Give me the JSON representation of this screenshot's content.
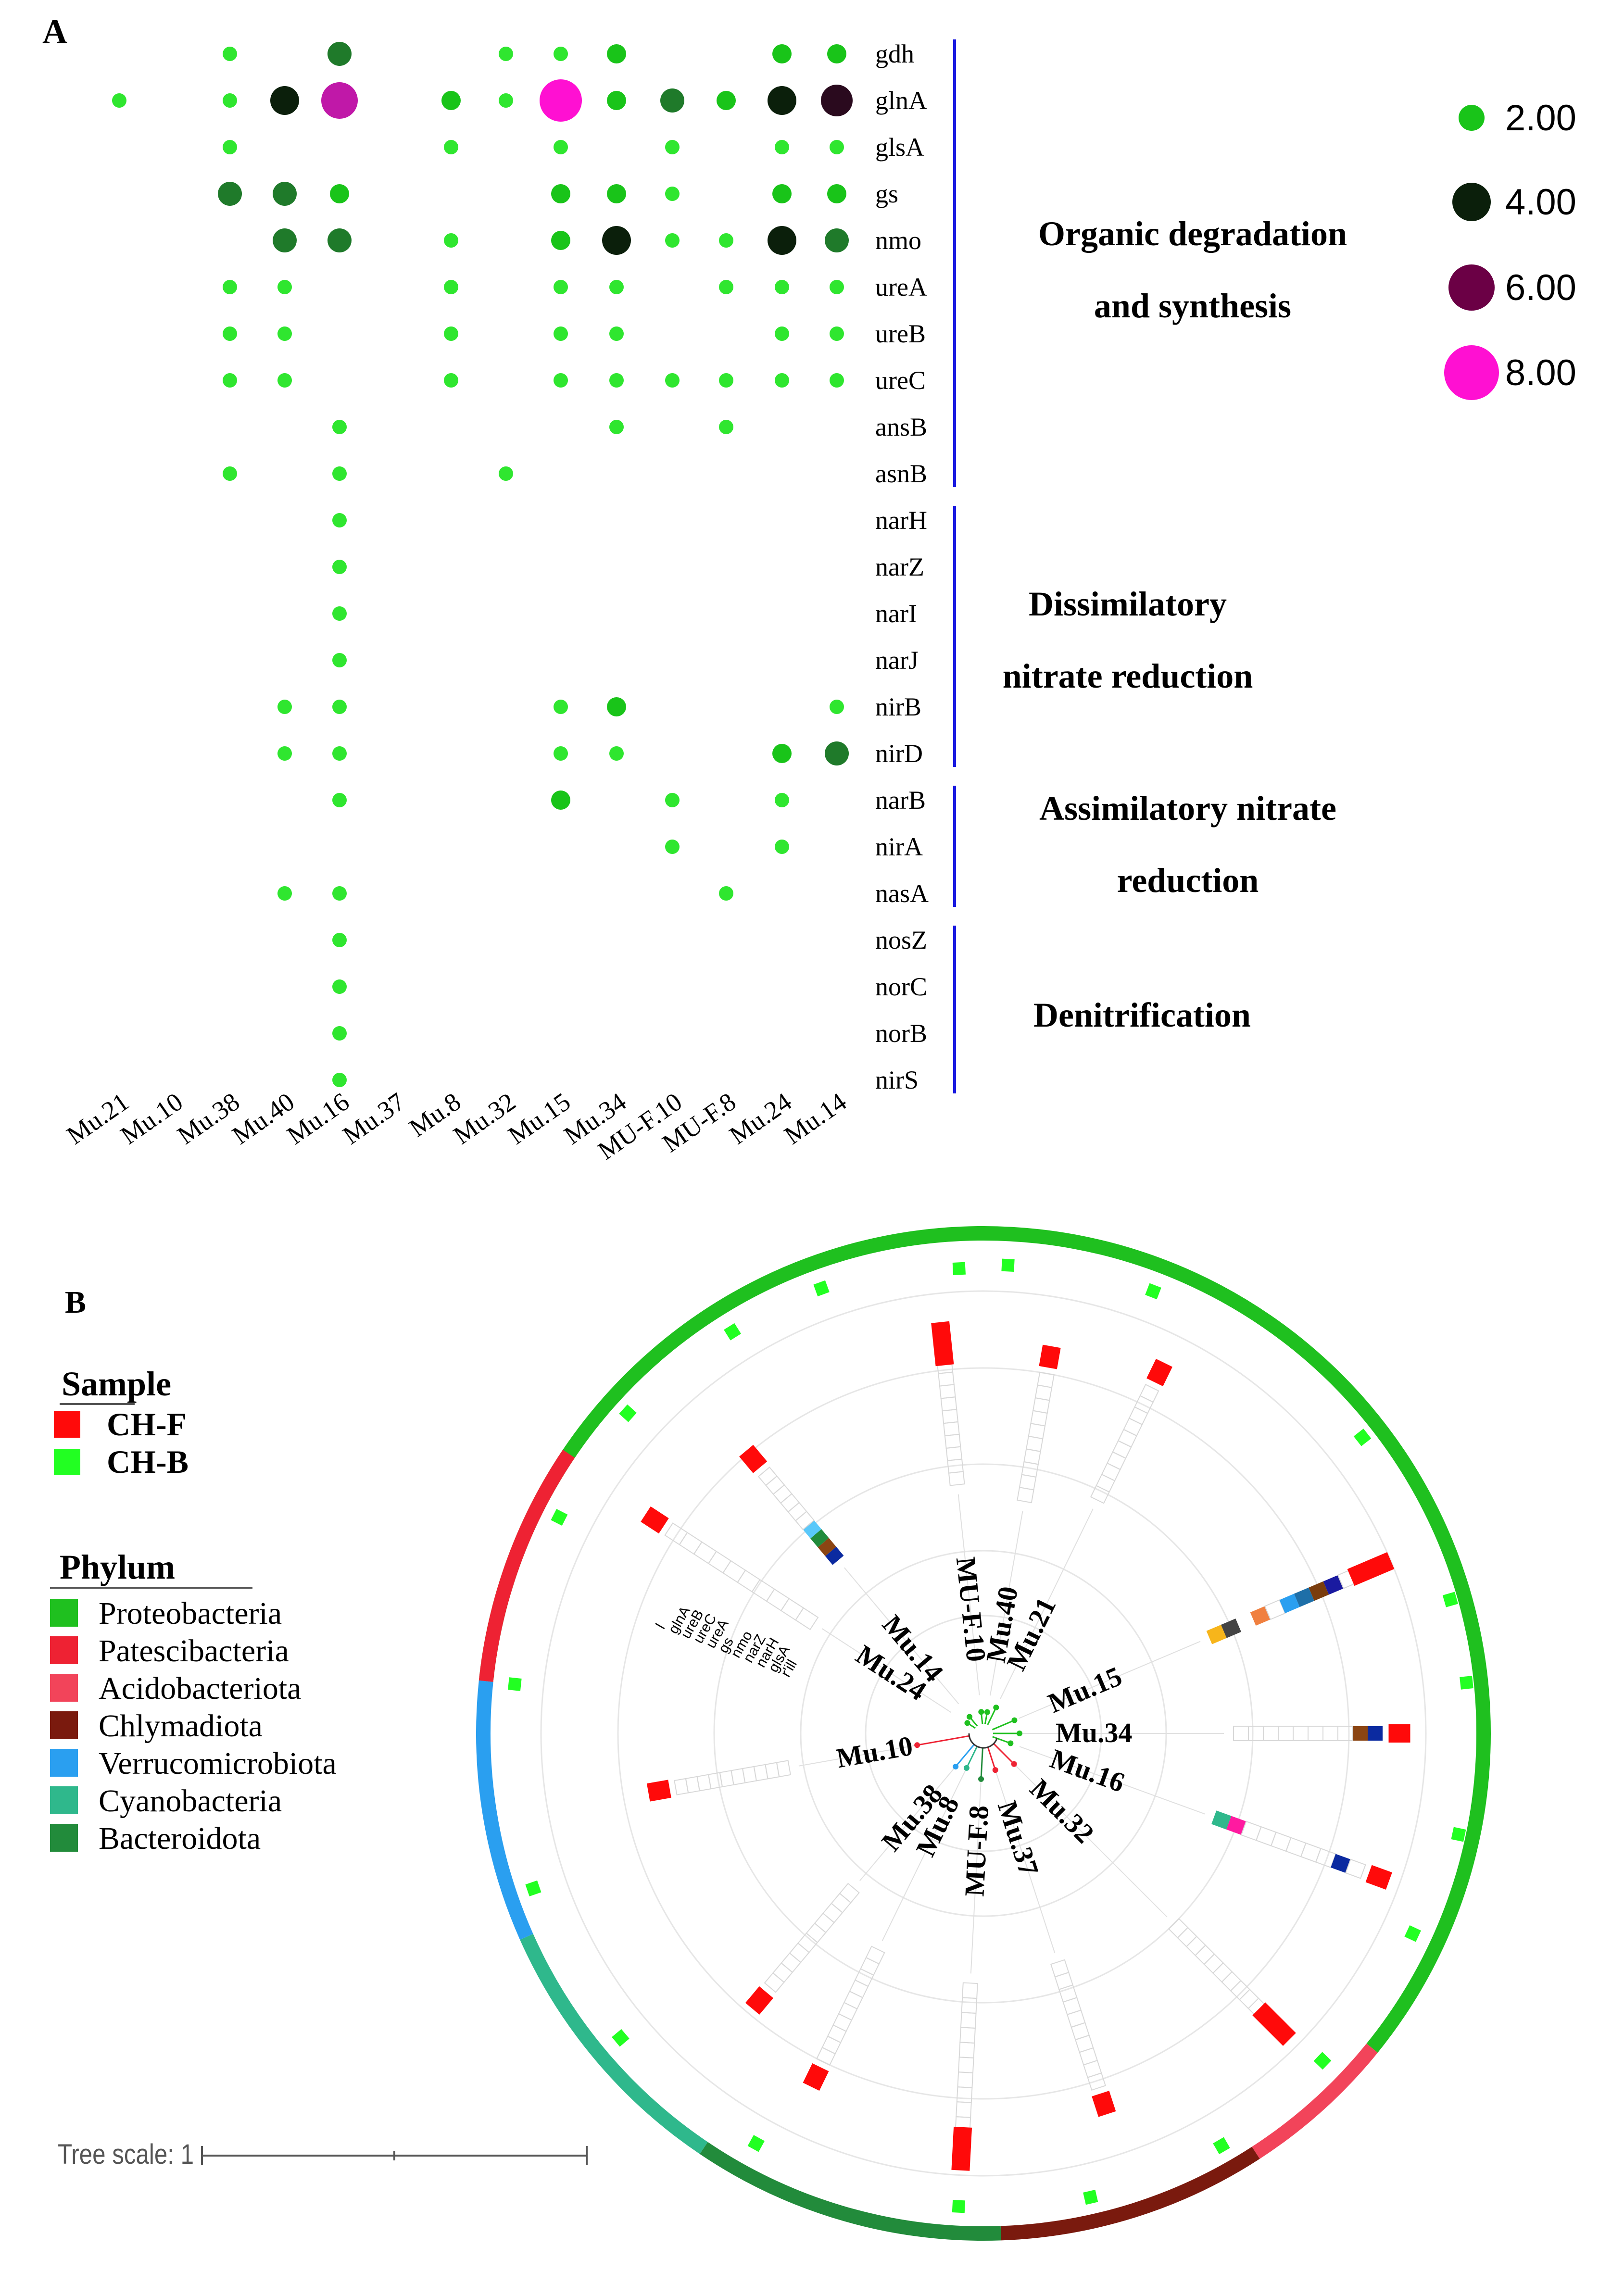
{
  "panel_a": {
    "label": "A",
    "chart_data": {
      "type": "bubble-matrix",
      "samples": [
        "Mu.21",
        "Mu.10",
        "Mu.38",
        "Mu.40",
        "Mu.16",
        "Mu.37",
        "Mu.8",
        "Mu.32",
        "Mu.15",
        "Mu.34",
        "MU-F.10",
        "MU-F.8",
        "Mu.24",
        "Mu.14"
      ],
      "genes": [
        "gdh",
        "glnA",
        "glsA",
        "gs",
        "nmo",
        "ureA",
        "ureB",
        "ureC",
        "ansB",
        "asnB",
        "narH",
        "narZ",
        "narI",
        "narJ",
        "nirB",
        "nirD",
        "narB",
        "nirA",
        "nasA",
        "nosZ",
        "norC",
        "norB",
        "nirS"
      ],
      "values": [
        [
          0,
          0,
          1,
          0,
          3,
          0,
          0,
          1,
          1,
          2,
          0,
          0,
          2,
          2
        ],
        [
          1,
          0,
          1,
          4,
          7,
          0,
          2,
          1,
          8,
          2,
          3,
          2,
          4,
          5
        ],
        [
          0,
          0,
          1,
          0,
          0,
          0,
          1,
          0,
          1,
          0,
          1,
          0,
          1,
          1
        ],
        [
          0,
          0,
          3,
          3,
          2,
          0,
          0,
          0,
          2,
          2,
          1,
          0,
          2,
          2
        ],
        [
          0,
          0,
          0,
          3,
          3,
          0,
          1,
          0,
          2,
          4,
          1,
          1,
          4,
          3
        ],
        [
          0,
          0,
          1,
          1,
          0,
          0,
          1,
          0,
          1,
          1,
          0,
          1,
          1,
          1
        ],
        [
          0,
          0,
          1,
          1,
          0,
          0,
          1,
          0,
          1,
          1,
          0,
          0,
          1,
          1
        ],
        [
          0,
          0,
          1,
          1,
          0,
          0,
          1,
          0,
          1,
          1,
          1,
          1,
          1,
          1
        ],
        [
          0,
          0,
          0,
          0,
          1,
          0,
          0,
          0,
          0,
          1,
          0,
          1,
          0,
          0
        ],
        [
          0,
          0,
          1,
          0,
          1,
          0,
          0,
          1,
          0,
          0,
          0,
          0,
          0,
          0
        ],
        [
          0,
          0,
          0,
          0,
          1,
          0,
          0,
          0,
          0,
          0,
          0,
          0,
          0,
          0
        ],
        [
          0,
          0,
          0,
          0,
          1,
          0,
          0,
          0,
          0,
          0,
          0,
          0,
          0,
          0
        ],
        [
          0,
          0,
          0,
          0,
          1,
          0,
          0,
          0,
          0,
          0,
          0,
          0,
          0,
          0
        ],
        [
          0,
          0,
          0,
          0,
          1,
          0,
          0,
          0,
          0,
          0,
          0,
          0,
          0,
          0
        ],
        [
          0,
          0,
          0,
          1,
          1,
          0,
          0,
          0,
          1,
          2,
          0,
          0,
          0,
          1
        ],
        [
          0,
          0,
          0,
          1,
          1,
          0,
          0,
          0,
          1,
          1,
          0,
          0,
          2,
          3
        ],
        [
          0,
          0,
          0,
          0,
          1,
          0,
          0,
          0,
          2,
          0,
          1,
          0,
          1,
          0
        ],
        [
          0,
          0,
          0,
          0,
          0,
          0,
          0,
          0,
          0,
          0,
          1,
          0,
          1,
          0
        ],
        [
          0,
          0,
          0,
          1,
          1,
          0,
          0,
          0,
          0,
          0,
          0,
          1,
          0,
          0
        ]
      ],
      "values_tail": [
        [
          0,
          0,
          0,
          0,
          1,
          0,
          0,
          0,
          0,
          0,
          0,
          0,
          0,
          0
        ],
        [
          0,
          0,
          0,
          0,
          1,
          0,
          0,
          0,
          0,
          0,
          0,
          0,
          0,
          0
        ],
        [
          0,
          0,
          0,
          0,
          1,
          0,
          0,
          0,
          0,
          0,
          0,
          0,
          0,
          0
        ],
        [
          0,
          0,
          0,
          0,
          1,
          0,
          0,
          0,
          0,
          0,
          0,
          0,
          0,
          0
        ]
      ],
      "groups": [
        {
          "lines": [
            "Organic degradation",
            "and synthesis"
          ],
          "from": "gdh",
          "to": "asnB"
        },
        {
          "lines": [
            "Dissimilatory",
            "nitrate reduction"
          ],
          "from": "narH",
          "to": "nirD"
        },
        {
          "lines": [
            "Assimilatory nitrate",
            "reduction"
          ],
          "from": "narB",
          "to": "nasA"
        },
        {
          "lines": [
            "Denitrification"
          ],
          "from": "nosZ",
          "to": "nirS"
        }
      ],
      "legend": [
        {
          "value": 2,
          "label": "2.00",
          "color": "#19c419"
        },
        {
          "value": 4,
          "label": "4.00",
          "color": "#0b1f0b"
        },
        {
          "value": 6,
          "label": "6.00",
          "color": "#6b0045"
        },
        {
          "value": 8,
          "label": "8.00",
          "color": "#ff10d2"
        }
      ],
      "colors": {
        "c1": "#2fe62f",
        "c2": "#19c419",
        "c3": "#1f7a2a",
        "c4": "#0b1f0b",
        "c5": "#2a0a1e",
        "c7": "#c018a8",
        "c8": "#ff10d2",
        "bracket": "#1a1ae0"
      }
    }
  },
  "panel_b": {
    "label": "B",
    "sample_legend": {
      "title": "Sample",
      "items": [
        {
          "label": "CH-F",
          "color": "#ff0a0a"
        },
        {
          "label": "CH-B",
          "color": "#22ff22"
        }
      ]
    },
    "phylum_legend": {
      "title": "Phylum",
      "items": [
        {
          "label": "Proteobacteria",
          "color": "#1fc01f"
        },
        {
          "label": "Patescibacteria",
          "color": "#ee2233"
        },
        {
          "label": "Acidobacteriota",
          "color": "#f2445a"
        },
        {
          "label": "Chlymadiota",
          "color": "#7a1a0e"
        },
        {
          "label": "Verrucomicrobiota",
          "color": "#2a9ff0"
        },
        {
          "label": "Cyanobacteria",
          "color": "#2fb88c"
        },
        {
          "label": "Bacteroidota",
          "color": "#228b3b"
        }
      ]
    },
    "tree_scale": "Tree scale: 1",
    "tree": {
      "leaves": [
        {
          "label": "Mu.21",
          "sample": "CH-F",
          "phylum": "Proteobacteria"
        },
        {
          "label": "Mu.15",
          "sample": "CH-F",
          "phylum": "Proteobacteria"
        },
        {
          "label": "Mu.34",
          "sample": "CH-F",
          "phylum": "Proteobacteria"
        },
        {
          "label": "Mu.16",
          "sample": "CH-F",
          "phylum": "Proteobacteria"
        },
        {
          "label": "Mu.32",
          "sample": "CH-F",
          "phylum": "Acidobacteriota"
        },
        {
          "label": "Mu.37",
          "sample": "CH-F",
          "phylum": "Chlymadiota"
        },
        {
          "label": "MU-F.8",
          "sample": "CH-F",
          "phylum": "Bacteroidota"
        },
        {
          "label": "Mu.8",
          "sample": "CH-F",
          "phylum": "Cyanobacteria"
        },
        {
          "label": "Mu.38",
          "sample": "CH-F",
          "phylum": "Verrucomicrobiota"
        },
        {
          "label": "Mu.10",
          "sample": "CH-F",
          "phylum": "Patescibacteria"
        },
        {
          "label": "Mu.24",
          "sample": "CH-F",
          "phylum": "Proteobacteria"
        },
        {
          "label": "Mu.14",
          "sample": "CH-F",
          "phylum": "Proteobacteria"
        },
        {
          "label": "MU-F.10",
          "sample": "CH-F",
          "phylum": "Proteobacteria"
        },
        {
          "label": "Mu.40",
          "sample": "CH-F",
          "phylum": "Proteobacteria"
        }
      ],
      "gene_header": [
        "l",
        "glnA",
        "ureB",
        "ureC",
        "ureA",
        "gs",
        "nmo",
        "narZ",
        "narH",
        "glsA",
        "r'ill"
      ]
    }
  }
}
